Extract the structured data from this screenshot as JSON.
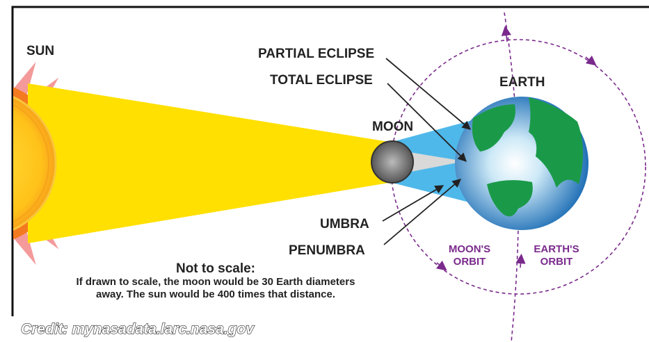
{
  "labels": {
    "sun": "SUN",
    "partial_eclipse": "PARTIAL ECLIPSE",
    "total_eclipse": "TOTAL ECLIPSE",
    "moon": "MOON",
    "earth": "EARTH",
    "umbra": "UMBRA",
    "penumbra": "PENUMBRA",
    "moons_orbit": [
      "MOON'S",
      "ORBIT"
    ],
    "earths_orbit": [
      "EARTH'S",
      "ORBIT"
    ]
  },
  "note": {
    "title": "Not to scale:",
    "lines": [
      "If drawn to scale, the moon would be 30 Earth diameters",
      "away. The sun would be 400 times that distance."
    ]
  },
  "credit": "Credit: mynasadata.larc.nasa.gov"
}
